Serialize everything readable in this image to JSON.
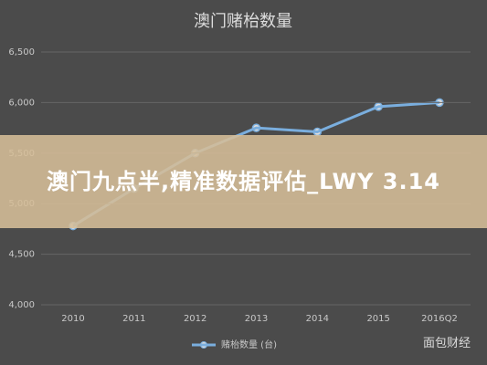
{
  "chart_data": {
    "type": "line",
    "title": "澳门赌枱数量",
    "categories": [
      "2010",
      "2011",
      "2012",
      "2013",
      "2014",
      "2015",
      "2016Q2"
    ],
    "series": [
      {
        "name": "赌枱数量 (台)",
        "color": "#7aaede",
        "values": [
          4780,
          5150,
          5500,
          5750,
          5710,
          5960,
          6000
        ]
      }
    ],
    "ylim": [
      4000,
      6500
    ],
    "yticks": [
      {
        "value": 4000,
        "label": "4,000"
      },
      {
        "value": 4500,
        "label": "4,500"
      },
      {
        "value": 5000,
        "label": "5,000"
      },
      {
        "value": 5500,
        "label": "5,500"
      },
      {
        "value": 6000,
        "label": "6,000"
      },
      {
        "value": 6500,
        "label": "6,500"
      }
    ],
    "grid": true,
    "legend": "bottom"
  },
  "overlay": {
    "text": "澳门九点半,精准数据评估_LWY 3.14"
  },
  "watermark": "面包财经"
}
